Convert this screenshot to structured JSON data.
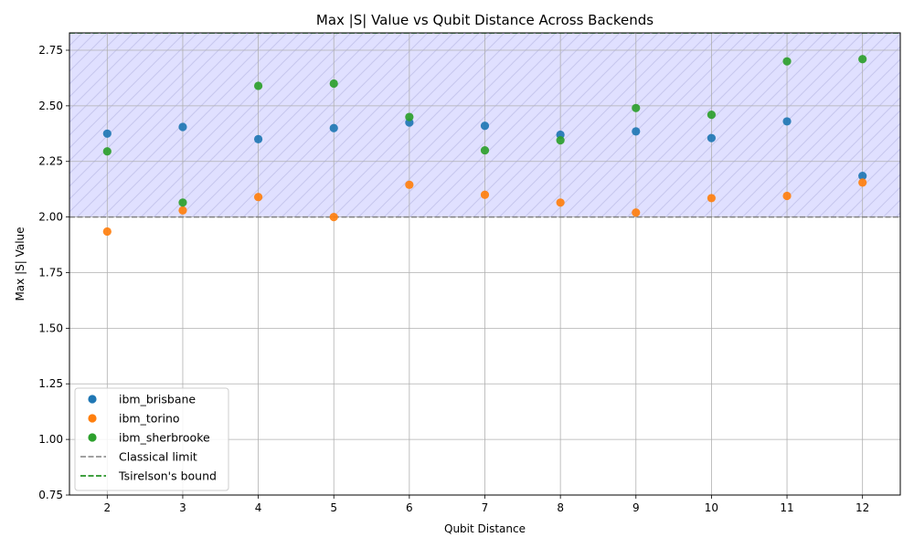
{
  "chart_data": {
    "type": "scatter",
    "title": "Max |S| Value vs Qubit Distance Across Backends",
    "xlabel": "Qubit Distance",
    "ylabel": "Max |S| Value",
    "xlim": [
      1.5,
      12.5
    ],
    "ylim": [
      0.75,
      2.828
    ],
    "xticks": [
      "2",
      "3",
      "4",
      "5",
      "6",
      "7",
      "8",
      "9",
      "10",
      "11",
      "12"
    ],
    "yticks": [
      "0.75",
      "1.00",
      "1.25",
      "1.50",
      "1.75",
      "2.00",
      "2.25",
      "2.50",
      "2.75"
    ],
    "grid": true,
    "legend_position": "lower-left",
    "shaded_region": {
      "from": 2.0,
      "to": 2.828,
      "color": "#e0e0ff",
      "hatch_color": "#c6c6ee"
    },
    "x": [
      2,
      3,
      4,
      5,
      6,
      7,
      8,
      9,
      10,
      11,
      12
    ],
    "series": [
      {
        "name": "ibm_brisbane",
        "color": "#1f77b4",
        "values": [
          2.375,
          2.405,
          2.35,
          2.4,
          2.425,
          2.41,
          2.37,
          2.385,
          2.355,
          2.43,
          2.185
        ]
      },
      {
        "name": "ibm_torino",
        "color": "#ff7f0e",
        "values": [
          1.935,
          2.03,
          2.09,
          2.0,
          2.145,
          2.1,
          2.065,
          2.02,
          2.085,
          2.095,
          2.155
        ]
      },
      {
        "name": "ibm_sherbrooke",
        "color": "#2ca02c",
        "values": [
          2.295,
          2.065,
          2.59,
          2.6,
          2.45,
          2.3,
          2.345,
          2.49,
          2.46,
          2.7,
          2.71
        ]
      }
    ],
    "reference_lines": [
      {
        "name": "Classical limit",
        "value": 2.0,
        "color": "#808080",
        "style": "dashed"
      },
      {
        "name": "Tsirelson's bound",
        "value": 2.828,
        "color": "#008000",
        "style": "dashed"
      }
    ]
  }
}
